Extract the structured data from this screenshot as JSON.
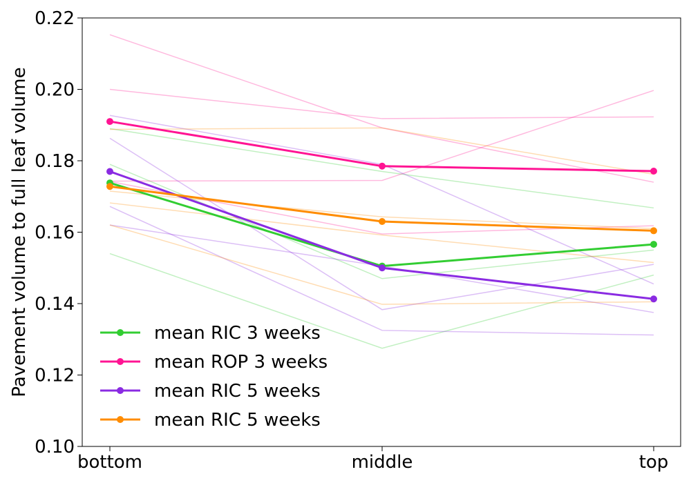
{
  "chart_data": {
    "type": "line",
    "categories": [
      "bottom",
      "middle",
      "top"
    ],
    "ylabel": "Pavement volume to full leaf volume",
    "xlabel": "",
    "ylim": [
      0.1,
      0.22
    ],
    "yticks": [
      "0.10",
      "0.12",
      "0.14",
      "0.16",
      "0.18",
      "0.20",
      "0.22"
    ],
    "grid": false,
    "legend_position": "lower-left",
    "series": [
      {
        "name": "mean RIC 3 weeks",
        "color": "#32cd32",
        "values": [
          0.1738,
          0.1505,
          0.1566
        ]
      },
      {
        "name": "mean ROP 3 weeks",
        "color": "#ff1493",
        "values": [
          0.191,
          0.1785,
          0.1771
        ]
      },
      {
        "name": "mean RIC 5 weeks",
        "color": "#8a2be2",
        "values": [
          0.177,
          0.15,
          0.1413
        ]
      },
      {
        "name": "mean RIC 5 weeks",
        "color": "#ff8c00",
        "values": [
          0.1728,
          0.163,
          0.1604
        ]
      }
    ],
    "individual_lines": [
      {
        "color": "#32cd32",
        "values": [
          0.189,
          0.177,
          0.1668
        ]
      },
      {
        "color": "#32cd32",
        "values": [
          0.179,
          0.147,
          0.155
        ]
      },
      {
        "color": "#32cd32",
        "values": [
          0.154,
          0.1275,
          0.148
        ]
      },
      {
        "color": "#ff1493",
        "values": [
          0.2153,
          0.1892,
          0.174
        ]
      },
      {
        "color": "#ff1493",
        "values": [
          0.2,
          0.1918,
          0.1923
        ]
      },
      {
        "color": "#ff1493",
        "values": [
          0.1743,
          0.1745,
          0.1997
        ]
      },
      {
        "color": "#ff1493",
        "values": [
          0.1742,
          0.1595,
          0.1618
        ]
      },
      {
        "color": "#8a2be2",
        "values": [
          0.1927,
          0.179,
          0.1455
        ]
      },
      {
        "color": "#8a2be2",
        "values": [
          0.1863,
          0.1383,
          0.151
        ]
      },
      {
        "color": "#8a2be2",
        "values": [
          0.1672,
          0.1325,
          0.1312
        ]
      },
      {
        "color": "#8a2be2",
        "values": [
          0.162,
          0.1505,
          0.1375
        ]
      },
      {
        "color": "#ff8c00",
        "values": [
          0.1888,
          0.1892,
          0.1762
        ]
      },
      {
        "color": "#ff8c00",
        "values": [
          0.1715,
          0.1643,
          0.161
        ]
      },
      {
        "color": "#ff8c00",
        "values": [
          0.1682,
          0.1592,
          0.1515
        ]
      },
      {
        "color": "#ff8c00",
        "values": [
          0.162,
          0.1398,
          0.1405
        ]
      }
    ]
  }
}
